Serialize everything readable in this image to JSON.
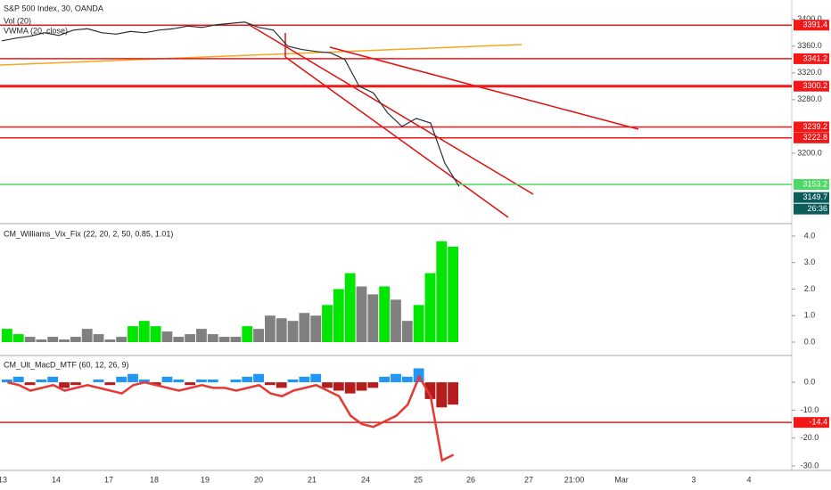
{
  "chart_data": [
    {
      "type": "line",
      "title": "S&P 500 Index, 30, OANDA",
      "indicators": [
        "Vol (20)",
        "VWMA (20, close)"
      ],
      "values": [
        3368,
        3372,
        3375,
        3380,
        3376,
        3384,
        3386,
        3380,
        3378,
        3382,
        3380,
        3384,
        3386,
        3390,
        3388,
        3392,
        3394,
        3396,
        3388,
        3384,
        3360,
        3355,
        3352,
        3350,
        3340,
        3300,
        3290,
        3260,
        3240,
        3252,
        3245,
        3185,
        3150
      ],
      "color": "#2a2e39",
      "ylim": [
        3096,
        3429
      ],
      "yticks": [
        {
          "value": 3200,
          "label": "3200.0"
        },
        {
          "value": 3280,
          "label": "3280.0"
        },
        {
          "value": 3320,
          "label": "3320.0"
        },
        {
          "value": 3360,
          "label": "3360.0"
        },
        {
          "value": 3400,
          "label": "3400.0"
        }
      ],
      "levels": [
        {
          "value": 3391.4,
          "color": "#f21818"
        },
        {
          "value": 3341.2,
          "color": "#f21818"
        },
        {
          "value": 3300.2,
          "color": "#f21818"
        },
        {
          "value": 3239.2,
          "color": "#f21818"
        },
        {
          "value": 3222.8,
          "color": "#f21818"
        },
        {
          "value": 3153.2,
          "color": "#4cd964"
        }
      ],
      "last_price": 3149.7,
      "last_price_color": "#0d5c5c",
      "countdown": "26:36"
    },
    {
      "type": "bar",
      "title": "CM_Williams_Vix_Fix (22, 20, 2, 50, 0.85, 1.01)",
      "values": [
        0.5,
        0.3,
        0.2,
        0.1,
        0.2,
        0.1,
        0.2,
        0.5,
        0.3,
        0.1,
        0.2,
        0.6,
        0.8,
        0.6,
        0.4,
        0.2,
        0.3,
        0.5,
        0.3,
        0.2,
        0.2,
        0.6,
        0.5,
        1.0,
        0.9,
        0.8,
        1.1,
        1.0,
        1.4,
        2.0,
        2.6,
        2.1,
        1.8,
        2.1,
        1.6,
        0.8,
        1.4,
        2.6,
        3.8,
        3.6
      ],
      "colors": [
        "#00e600",
        "#00e600",
        "#808080",
        "#808080",
        "#808080",
        "#808080",
        "#808080",
        "#808080",
        "#808080",
        "#808080",
        "#808080",
        "#00e600",
        "#00e600",
        "#00e600",
        "#808080",
        "#808080",
        "#808080",
        "#808080",
        "#808080",
        "#808080",
        "#808080",
        "#00e600",
        "#808080",
        "#808080",
        "#808080",
        "#808080",
        "#808080",
        "#808080",
        "#00e600",
        "#00e600",
        "#00e600",
        "#808080",
        "#808080",
        "#00e600",
        "#808080",
        "#808080",
        "#00e600",
        "#00e600",
        "#00e600",
        "#00e600"
      ],
      "ylim": [
        -0.47,
        4.4
      ],
      "yticks": [
        {
          "value": 0,
          "label": "0.0"
        },
        {
          "value": 1,
          "label": "1.0"
        },
        {
          "value": 2,
          "label": "2.0"
        },
        {
          "value": 3,
          "label": "3.0"
        },
        {
          "value": 4,
          "label": "4.0"
        }
      ]
    },
    {
      "type": "macd",
      "title": "CM_Ult_MacD_MTF (60, 12, 26, 9)",
      "histogram": [
        1,
        2,
        -1,
        1,
        2,
        -2,
        -1,
        0,
        1,
        -1,
        2,
        3,
        1,
        -1,
        2,
        1,
        -1,
        1,
        1,
        0,
        1,
        2,
        3,
        -1,
        -2,
        1,
        2,
        3,
        -2,
        -3,
        -4,
        -3,
        -2,
        2,
        3,
        2,
        5,
        -6,
        -9,
        -8
      ],
      "values": [
        0,
        -1,
        -3,
        -2,
        -1,
        -3,
        -2,
        -1,
        -2,
        -3,
        -4,
        -1,
        0,
        -1,
        -2,
        -3,
        -2,
        -1,
        -2,
        -2,
        -3,
        -2,
        -1,
        -4,
        -5,
        -3,
        -2,
        -1,
        -3,
        -5,
        -12,
        -15,
        -16,
        -14,
        -12,
        -8,
        2,
        -5,
        -28,
        -26
      ],
      "up_color": "#2196f3",
      "down_color": "#b71c1c",
      "color": "#e53935",
      "ylim": [
        -31.6,
        9.3
      ],
      "yticks": [
        {
          "value": -30,
          "label": "-30.0"
        },
        {
          "value": -20,
          "label": "-20.0"
        },
        {
          "value": -10,
          "label": "-10.0"
        },
        {
          "value": 0,
          "label": "0.0"
        }
      ],
      "levels": [
        {
          "value": -14.4,
          "color": "#f21818"
        }
      ]
    }
  ],
  "time_axis": [
    "13",
    "14",
    "17",
    "18",
    "19",
    "20",
    "21",
    "24",
    "25",
    "26",
    "27",
    "21:00",
    "Mar",
    "3",
    "4"
  ]
}
